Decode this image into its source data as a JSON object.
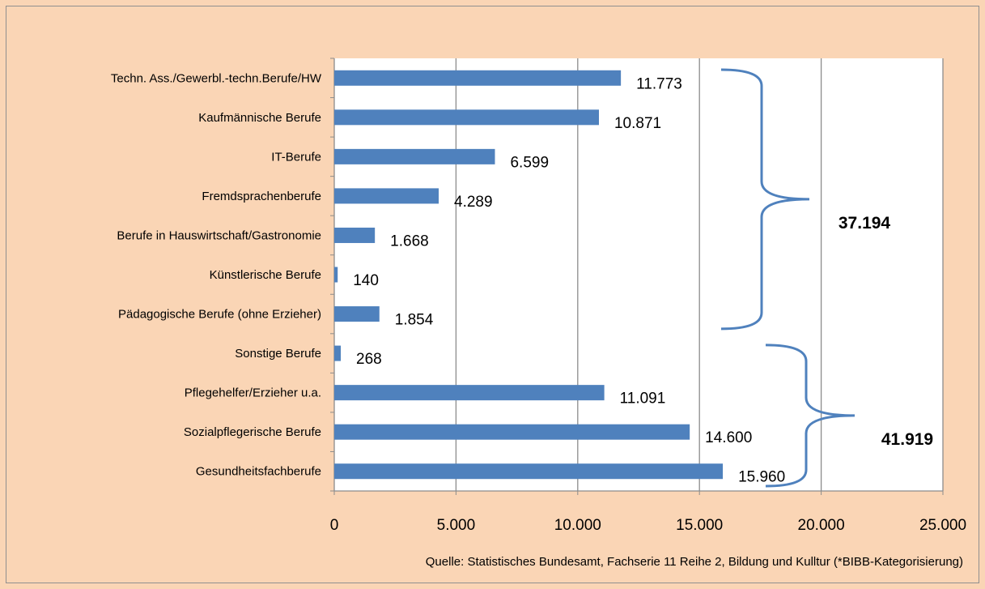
{
  "chart_data": {
    "type": "bar",
    "orientation": "horizontal",
    "categories": [
      "Techn. Ass./Gewerbl.-techn.Berufe/HW",
      "Kaufmännische Berufe",
      "IT-Berufe",
      "Fremdsprachenberufe",
      "Berufe in Hauswirtschaft/Gastronomie",
      "Künstlerische Berufe",
      "Pädagogische Berufe  (ohne Erzieher)",
      "Sonstige Berufe",
      "Pflegehelfer/Erzieher u.a.",
      "Sozialpflegerische Berufe",
      "Gesundheitsfachberufe"
    ],
    "values": [
      11773,
      10871,
      6599,
      4289,
      1668,
      140,
      1854,
      268,
      11091,
      14600,
      15960
    ],
    "value_labels": [
      "11.773",
      "10.871",
      "6.599",
      "4.289",
      "1.668",
      "140",
      "1.854",
      "268",
      "11.091",
      "14.600",
      "15.960"
    ],
    "xlim": [
      0,
      25000
    ],
    "xticks": [
      0,
      5000,
      10000,
      15000,
      20000,
      25000
    ],
    "xtick_labels": [
      "0",
      "5.000",
      "10.000",
      "15.000",
      "20.000",
      "25.000"
    ],
    "grid": "vertical",
    "bar_color": "#4f81bd",
    "groups": [
      {
        "from_category": 0,
        "to_category": 6,
        "total_label": "37.194"
      },
      {
        "from_category": 7,
        "to_category": 10,
        "total_label": "41.919"
      }
    ],
    "source": "Quelle: Statistisches Bundesamt, Fachserie 11 Reihe 2, Bildung und Kulltur (*BIBB-Kategorisierung)"
  }
}
